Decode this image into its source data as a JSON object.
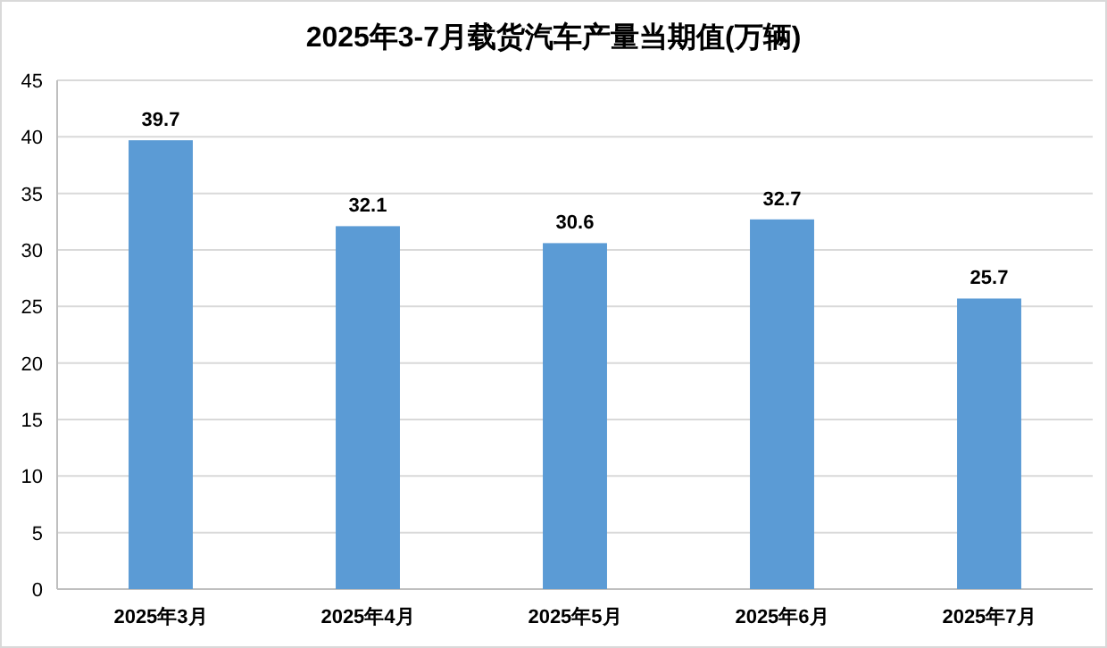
{
  "chart_data": {
    "type": "bar",
    "title": "2025年3-7月载货汽车产量当期值(万辆)",
    "categories": [
      "2025年3月",
      "2025年4月",
      "2025年5月",
      "2025年6月",
      "2025年7月"
    ],
    "values": [
      39.7,
      32.1,
      30.6,
      32.7,
      25.7
    ],
    "color": "#5b9bd5",
    "ylim": [
      0,
      45
    ],
    "yticks": [
      0,
      5,
      10,
      15,
      20,
      25,
      30,
      35,
      40,
      45
    ],
    "grid": "y",
    "data_labels": true
  }
}
